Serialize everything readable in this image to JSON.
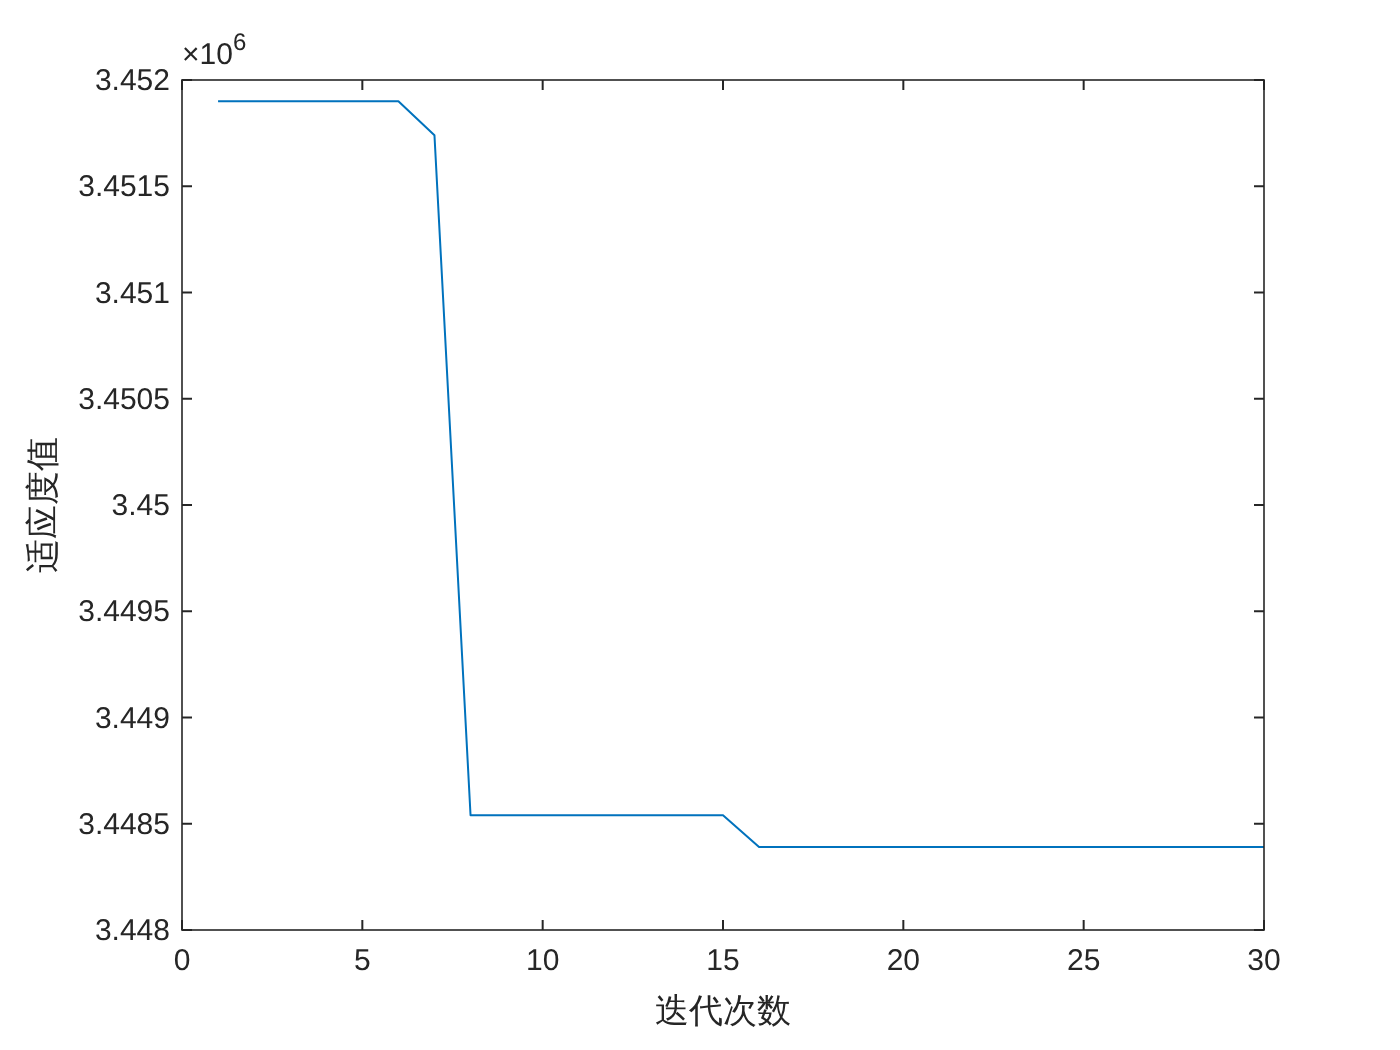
{
  "chart_data": {
    "type": "line",
    "xlabel": "迭代次数",
    "ylabel": "适应度值",
    "x": [
      1,
      2,
      3,
      4,
      5,
      6,
      7,
      8,
      9,
      10,
      11,
      12,
      13,
      14,
      15,
      16,
      17,
      18,
      19,
      20,
      21,
      22,
      23,
      24,
      25,
      26,
      27,
      28,
      29,
      30
    ],
    "values": [
      3.4519,
      3.4519,
      3.4519,
      3.4519,
      3.4519,
      3.4519,
      3.45174,
      3.44854,
      3.44854,
      3.44854,
      3.44854,
      3.44854,
      3.44854,
      3.44854,
      3.44854,
      3.44839,
      3.44839,
      3.44839,
      3.44839,
      3.44839,
      3.44839,
      3.44839,
      3.44839,
      3.44839,
      3.44839,
      3.44839,
      3.44839,
      3.44839,
      3.44839,
      3.44839
    ],
    "color": "#0072bd",
    "xlim": [
      0,
      30
    ],
    "xticks": [
      0,
      5,
      10,
      15,
      20,
      25,
      30
    ],
    "ylim": [
      3.448,
      3.452
    ],
    "yticks": [
      3.448,
      3.4485,
      3.449,
      3.4495,
      3.45,
      3.4505,
      3.451,
      3.4515,
      3.452
    ],
    "annotations": [
      "×10$^{6}$"
    ]
  }
}
